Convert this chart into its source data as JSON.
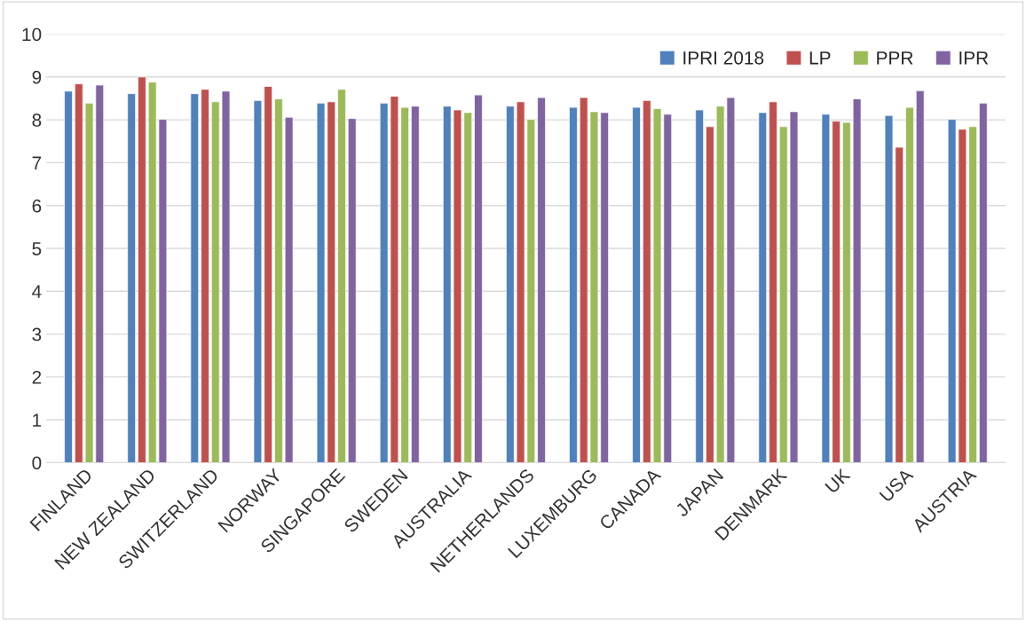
{
  "chart_data": {
    "type": "bar",
    "categories": [
      "FINLAND",
      "NEW ZEALAND",
      "SWITZERLAND",
      "NORWAY",
      "SINGAPORE",
      "SWEDEN",
      "AUSTRALIA",
      "NETHERLANDS",
      "LUXEMBURG",
      "CANADA",
      "JAPAN",
      "DENMARK",
      "UK",
      "USA",
      "AUSTRIA"
    ],
    "series": [
      {
        "name": "IPRI 2018",
        "color": "#4f81bd",
        "values": [
          8.67,
          8.61,
          8.61,
          8.45,
          8.39,
          8.39,
          8.32,
          8.32,
          8.29,
          8.29,
          8.23,
          8.17,
          8.13,
          8.1,
          8.01
        ]
      },
      {
        "name": "LP",
        "color": "#c0504d",
        "values": [
          8.84,
          9.0,
          8.71,
          8.78,
          8.42,
          8.55,
          8.23,
          8.42,
          8.52,
          8.45,
          7.84,
          8.42,
          7.97,
          7.36,
          7.78
        ]
      },
      {
        "name": "PPR",
        "color": "#9bbb59",
        "values": [
          8.39,
          8.88,
          8.42,
          8.49,
          8.71,
          8.29,
          8.17,
          8.01,
          8.19,
          8.26,
          8.32,
          7.84,
          7.94,
          8.29,
          7.84
        ]
      },
      {
        "name": "IPR",
        "color": "#8064a2",
        "values": [
          8.81,
          8.01,
          8.67,
          8.06,
          8.03,
          8.32,
          8.58,
          8.52,
          8.17,
          8.13,
          8.52,
          8.19,
          8.49,
          8.68,
          8.39
        ]
      }
    ],
    "ylim": [
      0,
      10
    ],
    "yticks": [
      0,
      1,
      2,
      3,
      4,
      5,
      6,
      7,
      8,
      9,
      10
    ],
    "grid": "y",
    "legend": "top right"
  }
}
